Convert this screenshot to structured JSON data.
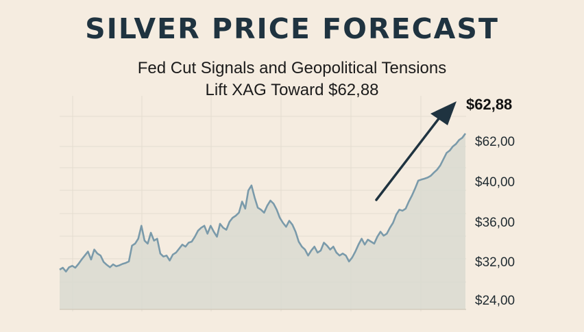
{
  "chart_data": {
    "type": "area",
    "title": "SILVER PRICE FORECAST",
    "subtitle_line1": "Fed Cut Signals and Geopolitical Tensions",
    "subtitle_line2": "Lift XAG Toward $62,88",
    "highlight_label": "$62,88",
    "y_tick_labels": [
      "$62,00",
      "$40,00",
      "$36,00",
      "$32,00",
      "$24,00"
    ],
    "grid": true,
    "legend": "none",
    "colors": {
      "line": "#7a9aaa",
      "area": "#d9dbd0",
      "arrow": "#1f3340",
      "grid": "#e4dccf"
    },
    "y_scale": {
      "ticks": [
        {
          "value": 62,
          "label_index": 0
        },
        {
          "value": 40,
          "label_index": 1
        },
        {
          "value": 36,
          "label_index": 2
        },
        {
          "value": 32,
          "label_index": 3
        },
        {
          "value": 24,
          "label_index": 4
        }
      ]
    },
    "values": [
      30.3,
      30.7,
      29.9,
      30.8,
      31.1,
      30.7,
      31.5,
      32.2,
      32.6,
      33.0,
      32.2,
      33.2,
      32.8,
      32.6,
      31.9,
      31.3,
      30.8,
      31.4,
      31.0,
      31.2,
      31.5,
      31.7,
      32.0,
      33.6,
      33.8,
      34.3,
      35.6,
      34.1,
      33.8,
      34.9,
      34.1,
      34.3,
      32.8,
      32.5,
      32.6,
      32.1,
      32.7,
      32.9,
      33.3,
      33.7,
      33.5,
      33.9,
      34.0,
      34.5,
      35.1,
      35.4,
      35.6,
      34.8,
      35.6,
      35.0,
      34.5,
      35.8,
      35.4,
      35.2,
      36.0,
      36.4,
      36.6,
      36.9,
      38.0,
      37.3,
      39.1,
      39.6,
      38.4,
      37.4,
      37.2,
      36.9,
      37.6,
      38.1,
      37.8,
      37.2,
      36.4,
      35.9,
      35.5,
      36.1,
      35.7,
      35.0,
      34.0,
      33.5,
      33.2,
      32.6,
      33.1,
      33.5,
      32.9,
      33.1,
      33.9,
      33.6,
      33.2,
      33.5,
      32.9,
      32.6,
      32.8,
      32.6,
      32.0,
      32.4,
      33.0,
      33.7,
      34.3,
      33.7,
      34.2,
      34.0,
      33.8,
      34.5,
      35.0,
      34.6,
      34.8,
      35.4,
      35.9,
      36.7,
      37.2,
      37.1,
      37.3,
      38.0,
      38.6,
      39.3,
      40.4,
      41.0,
      41.5,
      42.1,
      43.1,
      44.8,
      46.4,
      48.7,
      52.1,
      55.5,
      56.8,
      59.0,
      60.4,
      62.6,
      63.8,
      66.2
    ]
  }
}
